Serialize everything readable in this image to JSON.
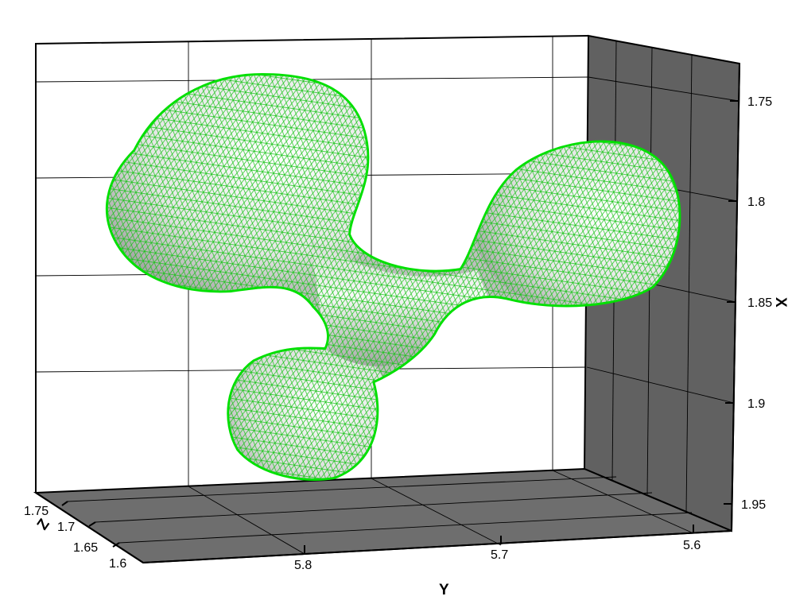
{
  "plot": {
    "colors": {
      "background_wall": "#ffffff",
      "side_wall": "#616161",
      "floor": "#6e6e6e",
      "grid_light": "#000000",
      "surface": "#f2f2f2",
      "surface_shade": "#7d7d7d",
      "mesh": "#16c416",
      "edge": "#00e000"
    },
    "axes": {
      "x": {
        "title": "X",
        "ticks": [
          "1.75",
          "1.8",
          "1.85",
          "1.9",
          "1.95"
        ]
      },
      "y": {
        "title": "Y",
        "ticks": [
          "5.8",
          "5.7",
          "5.6"
        ]
      },
      "z": {
        "title": "Z",
        "ticks": [
          "1.75",
          "1.7",
          "1.65",
          "1.6"
        ]
      }
    },
    "surface_description_icon": "triangulated-mesh-surface"
  }
}
